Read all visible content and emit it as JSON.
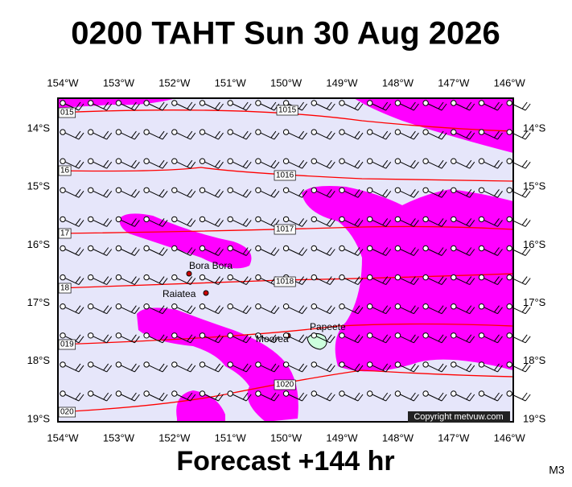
{
  "title": "0200 TAHT Sun 30 Aug 2026",
  "map": {
    "lon_labels": [
      "154°W",
      "153°W",
      "152°W",
      "151°W",
      "150°W",
      "149°W",
      "148°W",
      "147°W",
      "146°W"
    ],
    "lat_labels": [
      "14°S",
      "15°S",
      "16°S",
      "17°S",
      "18°S",
      "19°S"
    ],
    "isobar_labels": [
      "015",
      "1015",
      "16",
      "1016",
      "17",
      "1017",
      "18",
      "1018",
      "019",
      "020",
      "1020"
    ],
    "places": [
      "Bora Bora",
      "Raiatea",
      "Moorea",
      "Papeete"
    ],
    "copyright": "Copyright metvuw.com"
  },
  "footer": "Forecast +144 hr",
  "model": "M3"
}
